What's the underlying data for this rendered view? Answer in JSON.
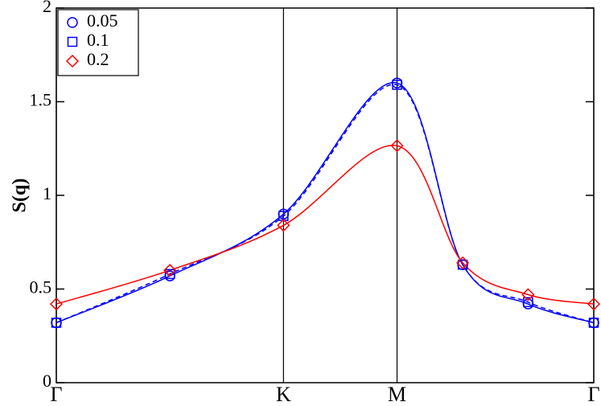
{
  "chart_data": {
    "type": "line",
    "ylabel": "S(q)",
    "x": [
      0,
      0.5,
      1,
      1.5,
      1.789,
      2.077,
      2.366
    ],
    "series": [
      {
        "name": "0.05",
        "color": "#0000ff",
        "marker": "circle",
        "dashed": false,
        "values": [
          0.32,
          0.57,
          0.9,
          1.6,
          0.63,
          0.42,
          0.32
        ]
      },
      {
        "name": "0.1",
        "color": "#0000ff",
        "marker": "square",
        "dashed": true,
        "values": [
          0.32,
          0.58,
          0.89,
          1.59,
          0.63,
          0.43,
          0.32
        ]
      },
      {
        "name": "0.2",
        "color": "#ff0000",
        "marker": "diamond",
        "dashed": false,
        "values": [
          0.42,
          0.6,
          0.84,
          1.265,
          0.64,
          0.47,
          0.42
        ]
      }
    ],
    "xlim": [
      0,
      2.366
    ],
    "xticks": [
      {
        "value": 0,
        "label": "Γ"
      },
      {
        "value": 1,
        "label": "K"
      },
      {
        "value": 1.5,
        "label": "M"
      },
      {
        "value": 2.366,
        "label": "Γ"
      }
    ],
    "ylim": [
      0,
      2
    ],
    "yticks": [
      0,
      0.5,
      1,
      1.5,
      2
    ],
    "grid": true,
    "legend": "top-left"
  }
}
